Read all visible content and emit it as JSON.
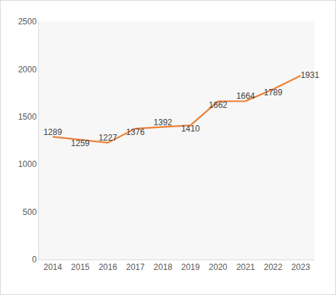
{
  "chart_data": {
    "type": "line",
    "categories": [
      "2014",
      "2015",
      "2016",
      "2017",
      "2018",
      "2019",
      "2020",
      "2021",
      "2022",
      "2023"
    ],
    "values": [
      1289,
      1259,
      1227,
      1376,
      1392,
      1410,
      1662,
      1664,
      1789,
      1931
    ],
    "color": "#ed7d31",
    "ylim": [
      0,
      2500
    ],
    "yticks": [
      0,
      500,
      1000,
      1500,
      2000,
      2500
    ],
    "grid": false,
    "data_labels": true
  }
}
